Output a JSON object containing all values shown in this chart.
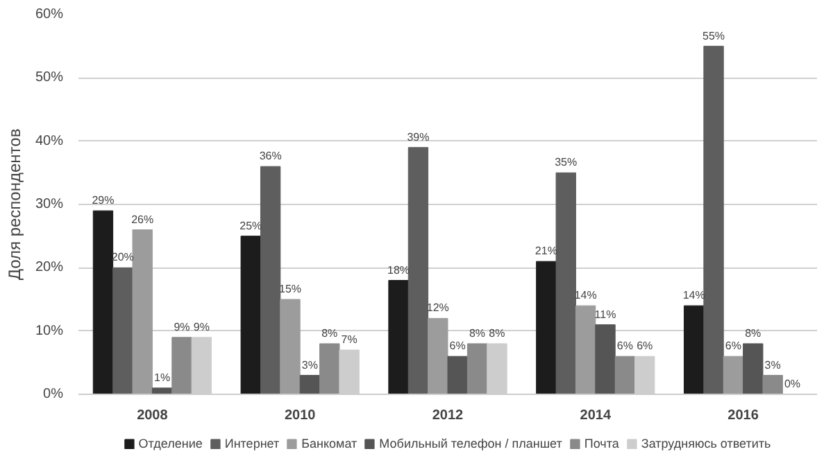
{
  "chart_data": {
    "type": "bar",
    "ylabel": "Доля респондентов",
    "categories": [
      "2008",
      "2010",
      "2012",
      "2014",
      "2016"
    ],
    "ylim": [
      0,
      60
    ],
    "yticks": [
      {
        "value": 0,
        "label": "0%"
      },
      {
        "value": 10,
        "label": "10%"
      },
      {
        "value": 20,
        "label": "20%"
      },
      {
        "value": 30,
        "label": "30%"
      },
      {
        "value": 40,
        "label": "40%"
      },
      {
        "value": 50,
        "label": "50%"
      },
      {
        "value": 60,
        "label": "60%"
      }
    ],
    "grid": "y",
    "legend": "bottom",
    "series": [
      {
        "name": "Отделение",
        "color": "#1c1c1c",
        "values": [
          29,
          25,
          18,
          21,
          14
        ],
        "value_labels": [
          "29%",
          "25%",
          "18%",
          "21%",
          "14%"
        ]
      },
      {
        "name": "Интернет",
        "color": "#5e5e5e",
        "values": [
          20,
          36,
          39,
          35,
          55
        ],
        "value_labels": [
          "20%",
          "36%",
          "39%",
          "35%",
          "55%"
        ]
      },
      {
        "name": "Банкомат",
        "color": "#9c9c9c",
        "values": [
          26,
          15,
          12,
          14,
          6
        ],
        "value_labels": [
          "26%",
          "15%",
          "12%",
          "14%",
          "6%"
        ]
      },
      {
        "name": "Мобильный телефон / планшет",
        "color": "#555555",
        "values": [
          1,
          3,
          6,
          11,
          8
        ],
        "value_labels": [
          "1%",
          "3%",
          "6%",
          "11%",
          "8%"
        ]
      },
      {
        "name": "Почта",
        "color": "#8a8a8a",
        "values": [
          9,
          8,
          8,
          6,
          3
        ],
        "value_labels": [
          "9%",
          "8%",
          "8%",
          "6%",
          "3%"
        ]
      },
      {
        "name": "Затрудняюсь ответить",
        "color": "#cdcdcd",
        "values": [
          9,
          7,
          8,
          6,
          0
        ],
        "value_labels": [
          "9%",
          "7%",
          "8%",
          "6%",
          "0%"
        ]
      }
    ]
  }
}
